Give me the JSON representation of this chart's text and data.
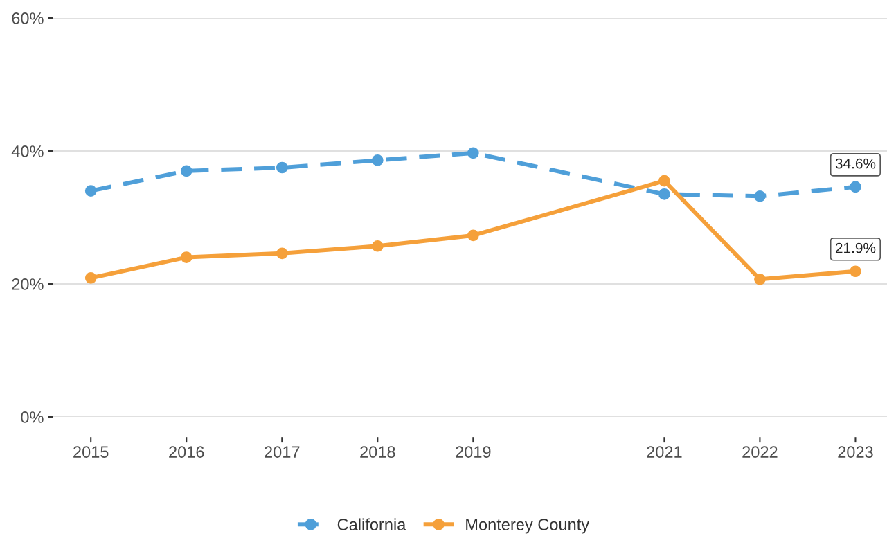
{
  "chart_data": {
    "type": "line",
    "x": [
      2015,
      2016,
      2017,
      2018,
      2019,
      2021,
      2022,
      2023
    ],
    "series": [
      {
        "name": "California",
        "color": "#4f9fd9",
        "line_style": "dashed",
        "values": [
          34.0,
          37.0,
          37.5,
          38.6,
          39.7,
          33.5,
          33.2,
          34.6
        ],
        "value_labels": [
          null,
          null,
          null,
          null,
          null,
          null,
          null,
          "34.6%"
        ]
      },
      {
        "name": "Monterey County",
        "color": "#f5a03a",
        "line_style": "solid",
        "values": [
          20.9,
          24.0,
          24.6,
          25.7,
          27.3,
          35.5,
          20.7,
          21.9
        ],
        "value_labels": [
          null,
          null,
          null,
          null,
          null,
          null,
          null,
          "21.9%"
        ]
      }
    ],
    "xlim": [
      2014.6,
      2023.33
    ],
    "xticks": [
      2015,
      2016,
      2017,
      2018,
      2019,
      2021,
      2022,
      2023
    ],
    "ylim": [
      0,
      60
    ],
    "yticks": [
      {
        "value": 0,
        "label": "0%"
      },
      {
        "value": 20,
        "label": "20%"
      },
      {
        "value": 40,
        "label": "40%"
      },
      {
        "value": 60,
        "label": "60%"
      }
    ],
    "grid": "y",
    "legend": "bottom",
    "marker": "circle"
  }
}
